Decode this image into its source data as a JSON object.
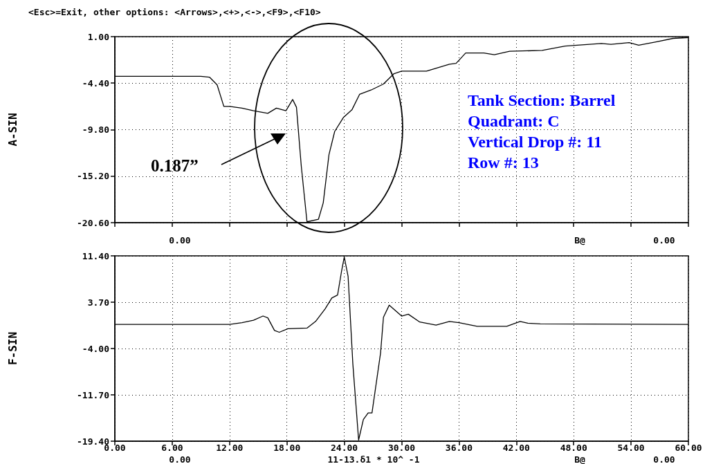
{
  "chart_data": [
    {
      "type": "line",
      "title": "<Esc>=Exit, other options: <Arrows>,<+>,<->,<F9>,<F10>",
      "ylabel": "A-SIN",
      "grid": true,
      "tick_labels": "y",
      "xlim": [
        0,
        60
      ],
      "xticks": [
        0,
        6,
        12,
        18,
        24,
        30,
        36,
        42,
        48,
        54,
        60
      ],
      "ylim": [
        -20.6,
        1
      ],
      "yticks": [
        {
          "value": 1,
          "label": "1.00"
        },
        {
          "value": -4.4,
          "label": "-4.40"
        },
        {
          "value": -9.8,
          "label": "-9.80"
        },
        {
          "value": -15.2,
          "label": "-15.20"
        },
        {
          "value": -20.6,
          "label": "-20.60"
        }
      ],
      "series": [
        {
          "color": "#000000",
          "x": [
            0,
            9.0,
            9.9,
            10.7,
            11.4,
            12.0,
            13.3,
            14.5,
            16.0,
            16.9,
            17.9,
            18.6,
            19.0,
            19.5,
            20.1,
            21.3,
            21.8,
            22.4,
            23.0,
            23.9,
            24.8,
            25.6,
            26.8,
            28.1,
            29.2,
            30.0,
            32.1,
            32.6,
            35.0,
            35.7,
            36.7,
            38.6,
            39.7,
            41.3,
            44.7,
            47.1,
            50.9,
            51.9,
            53.8,
            54.8,
            56.7,
            58.4,
            60
          ],
          "values": [
            -3.6,
            -3.6,
            -3.7,
            -4.6,
            -7.1,
            -7.1,
            -7.3,
            -7.6,
            -7.9,
            -7.3,
            -7.6,
            -6.3,
            -7.2,
            -14.0,
            -20.5,
            -20.2,
            -18.3,
            -12.7,
            -10.0,
            -8.4,
            -7.5,
            -5.7,
            -5.2,
            -4.5,
            -3.3,
            -3.0,
            -3.0,
            -3.0,
            -2.2,
            -2.1,
            -0.9,
            -0.9,
            -1.1,
            -0.7,
            -0.6,
            -0.1,
            0.2,
            0.1,
            0.3,
            0.0,
            0.4,
            0.8,
            0.9
          ]
        }
      ],
      "annotations": [
        "0.187”",
        "Tank Section: Barrel",
        "Quadrant: C",
        "Vertical Drop #: 11",
        "Row #: 13",
        "0.00",
        "B@",
        "0.00"
      ]
    },
    {
      "type": "line",
      "ylabel": "F-SIN",
      "grid": true,
      "xlim": [
        0,
        60
      ],
      "xticks": [
        {
          "value": 0,
          "label": "0.00"
        },
        {
          "value": 6,
          "label": "6.00"
        },
        {
          "value": 12,
          "label": "12.00"
        },
        {
          "value": 18,
          "label": "18.00"
        },
        {
          "value": 24,
          "label": "24.00"
        },
        {
          "value": 30,
          "label": "30.00"
        },
        {
          "value": 36,
          "label": "36.00"
        },
        {
          "value": 42,
          "label": "42.00"
        },
        {
          "value": 48,
          "label": "48.00"
        },
        {
          "value": 54,
          "label": "54.00"
        },
        {
          "value": 60,
          "label": "60.00"
        }
      ],
      "ylim": [
        -19.4,
        11.4
      ],
      "yticks": [
        {
          "value": 11.4,
          "label": "11.40"
        },
        {
          "value": 3.7,
          "label": "3.70"
        },
        {
          "value": -4,
          "label": "-4.00"
        },
        {
          "value": -11.7,
          "label": "-11.70"
        },
        {
          "value": -19.4,
          "label": "-19.40"
        }
      ],
      "series": [
        {
          "color": "#000000",
          "x": [
            0,
            12.0,
            13.3,
            14.5,
            15.5,
            16.0,
            16.7,
            17.2,
            18.1,
            20.1,
            21.0,
            22.0,
            22.7,
            23.3,
            23.7,
            24.0,
            24.4,
            24.9,
            25.5,
            26.0,
            26.5,
            26.9,
            27.8,
            28.1,
            28.7,
            30.0,
            30.7,
            31.9,
            33.6,
            35.0,
            36.0,
            37.9,
            41.0,
            42.4,
            43.2,
            44.5,
            60
          ],
          "values": [
            0,
            0,
            0.3,
            0.7,
            1.4,
            1.1,
            -1.0,
            -1.3,
            -0.7,
            -0.6,
            0.5,
            2.6,
            4.4,
            4.9,
            8.7,
            11.2,
            8.0,
            -6.6,
            -19.2,
            -15.8,
            -14.7,
            -14.7,
            -4.7,
            1.2,
            3.2,
            1.4,
            1.7,
            0.4,
            -0.1,
            0.5,
            0.3,
            -0.3,
            -0.3,
            0.5,
            0.2,
            0.1,
            0
          ]
        }
      ],
      "annotations": [
        "0.00",
        "11-13.δ1 * 10^ -1",
        "B@",
        "0.00"
      ]
    }
  ]
}
